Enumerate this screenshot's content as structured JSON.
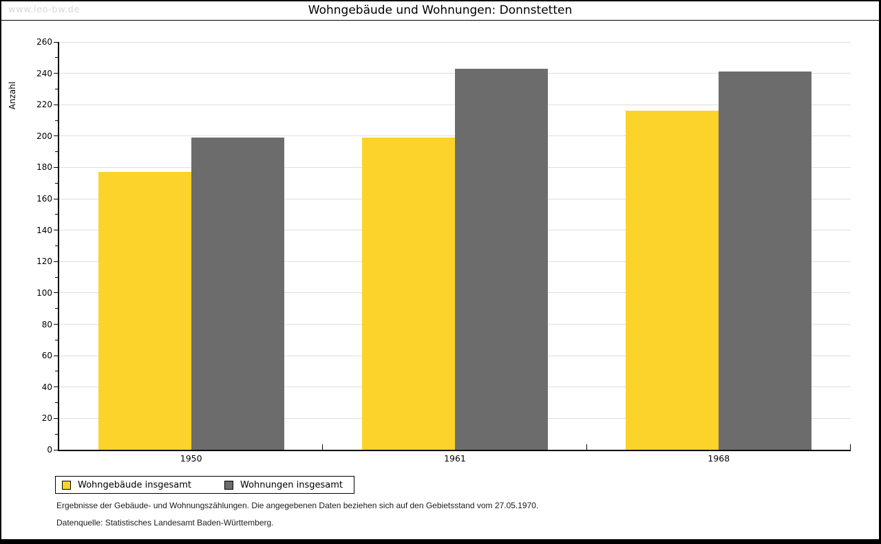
{
  "window": {
    "watermark": "www.leo-bw.de"
  },
  "chart_data": {
    "type": "bar",
    "title": "Wohngebäude und Wohnungen: Donnstetten",
    "ylabel": "Anzahl",
    "xlabel": "",
    "categories": [
      "1950",
      "1961",
      "1968"
    ],
    "series": [
      {
        "name": "Wohngebäude insgesamt",
        "color": "#FCD32B",
        "values": [
          177,
          199,
          216
        ]
      },
      {
        "name": "Wohnungen insgesamt",
        "color": "#6C6C6C",
        "values": [
          199,
          243,
          241
        ]
      }
    ],
    "ylim": [
      0,
      260
    ],
    "ytick_step": 20,
    "yminor_step": 10,
    "grid": true,
    "legend_position": "bottom-left"
  },
  "footer": {
    "line1": "Ergebnisse der Gebäude- und Wohnungszählungen. Die angegebenen Daten beziehen sich auf den Gebietsstand vom 27.05.1970.",
    "line2": "Datenquelle: Statistisches Landesamt Baden-Württemberg."
  },
  "colors": {
    "grid": "#DEDEDE",
    "axis": "#000000",
    "frame": "#000000",
    "watermark": "#D8D8D8",
    "background": "#FFFFFF"
  }
}
